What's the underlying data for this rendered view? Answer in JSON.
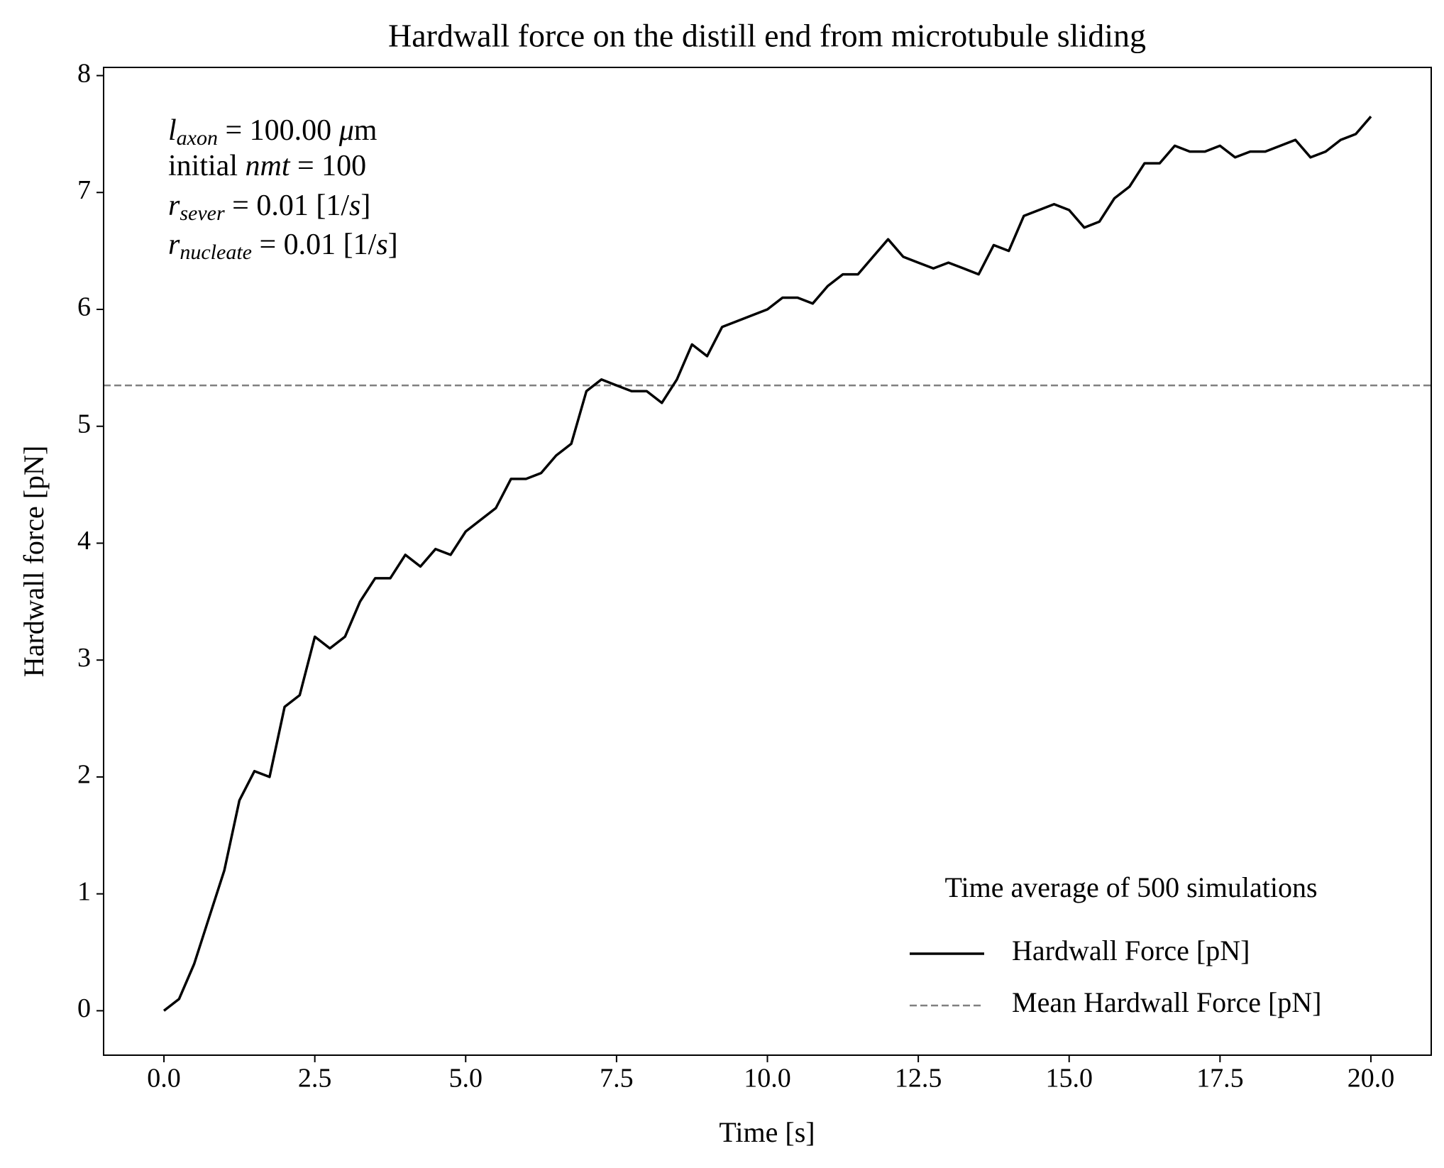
{
  "chart_data": {
    "type": "line",
    "title": "Hardwall force on the distill end from microtubule sliding",
    "xlabel": "Time [s]",
    "ylabel": "Hardwall force [pN]",
    "x": [
      0,
      0.25,
      0.5,
      0.75,
      1,
      1.25,
      1.5,
      1.75,
      2,
      2.25,
      2.5,
      2.75,
      3,
      3.25,
      3.5,
      3.75,
      4,
      4.25,
      4.5,
      4.75,
      5,
      5.25,
      5.5,
      5.75,
      6,
      6.25,
      6.5,
      6.75,
      7,
      7.25,
      7.5,
      7.75,
      8,
      8.25,
      8.5,
      8.75,
      9,
      9.25,
      9.5,
      9.75,
      10,
      10.25,
      10.5,
      10.75,
      11,
      11.25,
      11.5,
      11.75,
      12,
      12.25,
      12.5,
      12.75,
      13,
      13.25,
      13.5,
      13.75,
      14,
      14.25,
      14.5,
      14.75,
      15,
      15.25,
      15.5,
      15.75,
      16,
      16.25,
      16.5,
      16.75,
      17,
      17.25,
      17.5,
      17.75,
      18,
      18.25,
      18.5,
      18.75,
      19,
      19.25,
      19.5,
      19.75,
      20
    ],
    "series": [
      {
        "name": "Hardwall Force [pN]",
        "color": "#000000",
        "values": [
          0,
          0.1,
          0.4,
          0.8,
          1.2,
          1.8,
          2.05,
          2.0,
          2.6,
          2.7,
          3.2,
          3.1,
          3.2,
          3.5,
          3.7,
          3.7,
          3.9,
          3.8,
          3.95,
          3.9,
          4.1,
          4.2,
          4.3,
          4.55,
          4.55,
          4.6,
          4.75,
          4.85,
          5.3,
          5.4,
          5.35,
          5.3,
          5.3,
          5.2,
          5.4,
          5.7,
          5.6,
          5.85,
          5.9,
          5.95,
          6.0,
          6.1,
          6.1,
          6.05,
          6.2,
          6.3,
          6.3,
          6.45,
          6.6,
          6.45,
          6.4,
          6.35,
          6.4,
          6.35,
          6.3,
          6.55,
          6.5,
          6.8,
          6.85,
          6.9,
          6.85,
          6.7,
          6.75,
          6.95,
          7.05,
          7.25,
          7.25,
          7.4,
          7.35,
          7.35,
          7.4,
          7.3,
          7.35,
          7.35,
          7.4,
          7.45,
          7.3,
          7.35,
          7.45,
          7.5,
          7.65
        ]
      }
    ],
    "hlines": [
      {
        "name": "Mean Hardwall Force [pN]",
        "color": "#808080",
        "value": 5.35,
        "dashed": true
      }
    ],
    "xlim": [
      -1,
      21
    ],
    "ylim": [
      -0.38,
      8.07
    ],
    "xticks": [
      {
        "value": 0,
        "label": "0.0"
      },
      2.5,
      {
        "value": 5,
        "label": "5.0"
      },
      7.5,
      {
        "value": 10,
        "label": "10.0"
      },
      12.5,
      {
        "value": 15,
        "label": "15.0"
      },
      17.5,
      {
        "value": 20,
        "label": "20.0"
      }
    ],
    "yticks": [
      0,
      1,
      2,
      3,
      4,
      5,
      6,
      7,
      8
    ],
    "legend_title": "Time average of 500 simulations",
    "legend_position": "lower right",
    "annotation_lines": [
      [
        "l",
        "axon",
        " = 100.00 ",
        "μ",
        "m"
      ],
      [
        "initial ",
        "nmt",
        " = 100"
      ],
      [
        "r",
        "sever",
        " = 0.01 [1/",
        "s",
        "]"
      ],
      [
        "r",
        "nucleate",
        " = 0.01 [1/",
        "s",
        "]"
      ]
    ]
  }
}
